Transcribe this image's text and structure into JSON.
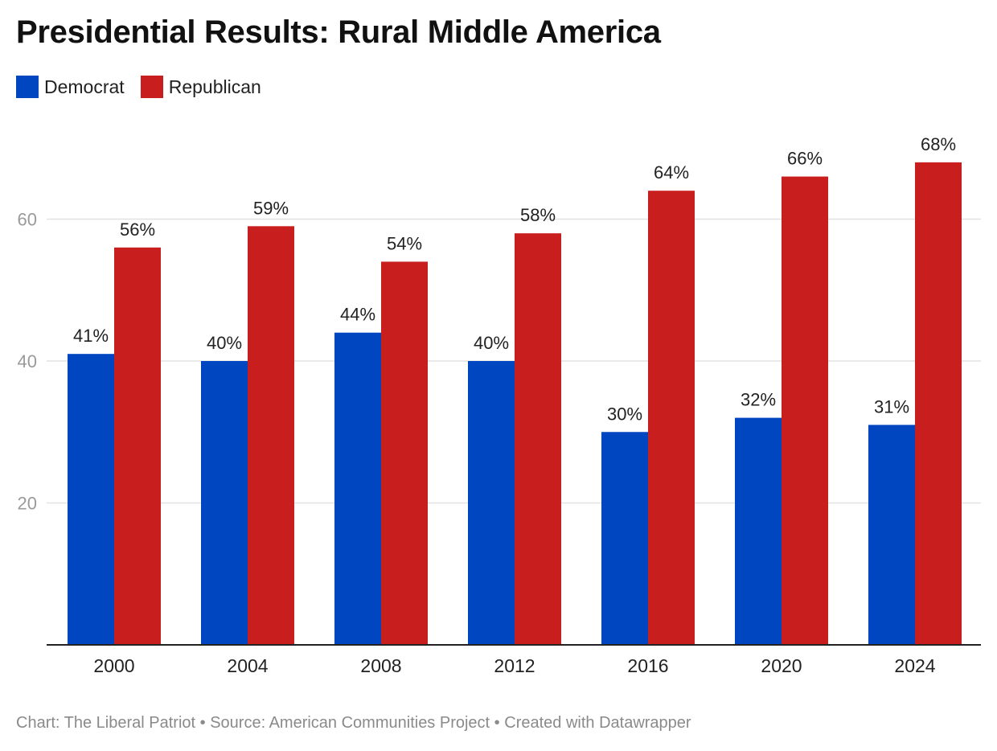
{
  "title": "Presidential Results: Rural Middle America",
  "legend": [
    {
      "label": "Democrat",
      "color": "#0046c1"
    },
    {
      "label": "Republican",
      "color": "#c81e1e"
    }
  ],
  "footer": {
    "credit": "Chart: The Liberal Patriot",
    "source": "Source: American Communities Project",
    "tool": "Created with Datawrapper",
    "separator": " • "
  },
  "chart_data": {
    "type": "bar",
    "categories": [
      "2000",
      "2004",
      "2008",
      "2012",
      "2016",
      "2020",
      "2024"
    ],
    "series": [
      {
        "name": "Democrat",
        "color": "#0046c1",
        "values": [
          41,
          40,
          44,
          40,
          30,
          32,
          31
        ]
      },
      {
        "name": "Republican",
        "color": "#c81e1e",
        "values": [
          56,
          59,
          54,
          58,
          64,
          66,
          68
        ]
      }
    ],
    "value_suffix": "%",
    "y_ticks": [
      20,
      40,
      60
    ],
    "ylim": [
      0,
      74
    ],
    "grid": true,
    "legend_position": "top-left"
  }
}
